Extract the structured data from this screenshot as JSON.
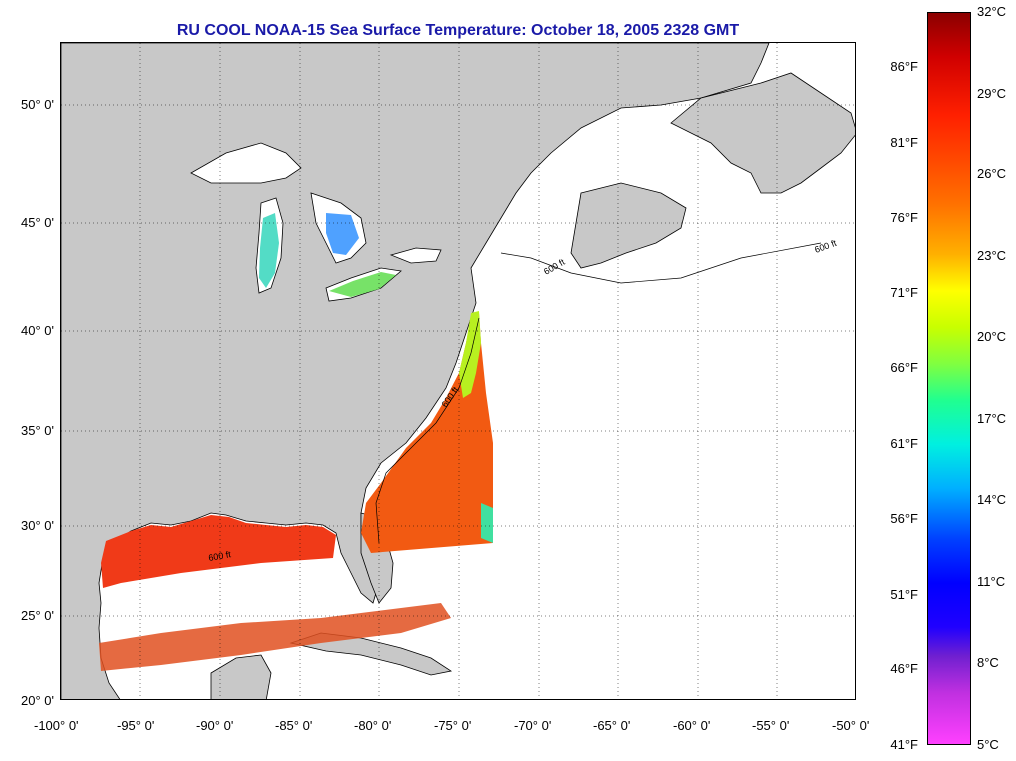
{
  "title": "RU COOL  NOAA-15  Sea Surface Temperature:  October 18, 2005 2328 GMT",
  "lat_labels": [
    "50° 0'",
    "45° 0'",
    "40° 0'",
    "35° 0'",
    "30° 0'",
    "25° 0'",
    "20° 0'"
  ],
  "lon_labels": [
    "-100° 0'",
    "-95° 0'",
    "-90° 0'",
    "-85° 0'",
    "-80° 0'",
    "-75° 0'",
    "-70° 0'",
    "-65° 0'",
    "-60° 0'",
    "-55° 0'",
    "-50° 0'"
  ],
  "colorbar": {
    "celsius": [
      "32°C",
      "29°C",
      "26°C",
      "23°C",
      "20°C",
      "17°C",
      "14°C",
      "11°C",
      "8°C",
      "5°C"
    ],
    "fahrenheit": [
      "86°F",
      "81°F",
      "76°F",
      "71°F",
      "66°F",
      "61°F",
      "56°F",
      "51°F",
      "46°F",
      "41°F"
    ]
  },
  "contour_labels": [
    "600 ft",
    "600 ft",
    "600 ft",
    "600 ft"
  ],
  "colors": {
    "title": "#1a1aa8",
    "land": "#c8c8c8",
    "ocean": "#ffffff",
    "gulf_sst": "#f03a18",
    "atlantic_sst": "#f25a12"
  }
}
